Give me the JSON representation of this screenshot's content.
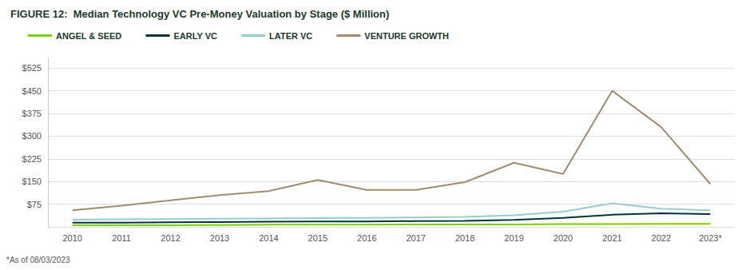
{
  "chart_data": {
    "type": "line",
    "title": "FIGURE 12:  Median Technology VC Pre-Money Valuation by Stage ($ Million)",
    "footnote": "*As of 08/03/2023",
    "categories": [
      "2010",
      "2011",
      "2012",
      "2013",
      "2014",
      "2015",
      "2016",
      "2017",
      "2018",
      "2019",
      "2020",
      "2021",
      "2022",
      "2023*"
    ],
    "series": [
      {
        "name": "VENTURE GROWTH",
        "color": "#a08c6e",
        "values": [
          55,
          70,
          88,
          105,
          118,
          155,
          122,
          122,
          148,
          212,
          175,
          450,
          330,
          142
        ]
      },
      {
        "name": "LATER VC",
        "color": "#99cccc",
        "values": [
          24,
          25,
          26,
          27,
          28,
          29,
          30,
          31,
          33,
          38,
          50,
          78,
          60,
          55
        ]
      },
      {
        "name": "EARLY VC",
        "color": "#003333",
        "values": [
          14,
          14,
          15,
          16,
          17,
          18,
          18,
          19,
          20,
          23,
          30,
          40,
          45,
          42
        ]
      },
      {
        "name": "ANGEL & SEED",
        "color": "#7fcd00",
        "values": [
          5,
          5,
          5,
          6,
          7,
          7,
          7,
          8,
          8,
          8,
          9,
          9,
          10,
          10
        ]
      }
    ],
    "ylim": [
      0,
      560
    ],
    "yticks": [
      {
        "value": 0,
        "label": ""
      },
      {
        "value": 75,
        "label": "$75"
      },
      {
        "value": 150,
        "label": "$150"
      },
      {
        "value": 225,
        "label": "$225"
      },
      {
        "value": 300,
        "label": "$300"
      },
      {
        "value": 375,
        "label": "$375"
      },
      {
        "value": 450,
        "label": "$450"
      },
      {
        "value": 525,
        "label": "$525"
      }
    ],
    "grid": true,
    "legend": "top"
  }
}
